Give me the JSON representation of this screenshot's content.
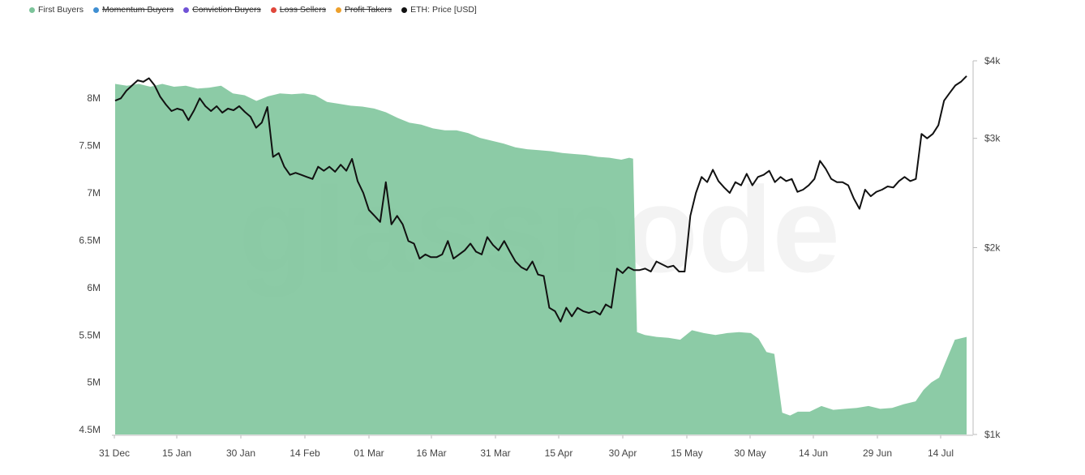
{
  "legend": [
    {
      "label": "First Buyers",
      "color": "#7cc49a",
      "hidden": false
    },
    {
      "label": "Momentum Buyers",
      "color": "#3f8fd2",
      "hidden": true
    },
    {
      "label": "Conviction Buyers",
      "color": "#7052d6",
      "hidden": true
    },
    {
      "label": "Loss Sellers",
      "color": "#e0473b",
      "hidden": true
    },
    {
      "label": "Profit Takers",
      "color": "#eda02c",
      "hidden": true
    },
    {
      "label": "ETH: Price [USD]",
      "color": "#111111",
      "hidden": false
    }
  ],
  "watermark": "glassnode",
  "chart_data": {
    "type": "area",
    "title": "",
    "xlabel": "",
    "ylabel": "",
    "x_ticks": [
      "31 Dec",
      "15 Jan",
      "30 Jan",
      "14 Feb",
      "01 Mar",
      "16 Mar",
      "31 Mar",
      "15 Apr",
      "30 Apr",
      "15 May",
      "30 May",
      "14 Jun",
      "29 Jun",
      "14 Jul"
    ],
    "x_range": [
      "31 Dec",
      "21 Jul"
    ],
    "y_left": {
      "ticks": [
        "4.5M",
        "5M",
        "5.5M",
        "6M",
        "6.5M",
        "7M",
        "7.5M",
        "8M"
      ],
      "range": [
        4.45,
        8.5
      ],
      "unit": "M"
    },
    "y_right": {
      "ticks": [
        "$1k",
        "$2k",
        "$3k",
        "$4k"
      ],
      "scale": "log",
      "range": [
        1000,
        4000
      ]
    },
    "grid": false,
    "legend_position": "top-left",
    "series": [
      {
        "name": "First Buyers",
        "axis": "left",
        "color": "#7cc49a",
        "style": "area",
        "points": [
          [
            0,
            8.15
          ],
          [
            3,
            8.13
          ],
          [
            6,
            8.15
          ],
          [
            9,
            8.12
          ],
          [
            12,
            8.15
          ],
          [
            15,
            8.12
          ],
          [
            18,
            8.13
          ],
          [
            21,
            8.1
          ],
          [
            24,
            8.11
          ],
          [
            27,
            8.13
          ],
          [
            30,
            8.05
          ],
          [
            33,
            8.03
          ],
          [
            36,
            7.97
          ],
          [
            39,
            8.02
          ],
          [
            42,
            8.05
          ],
          [
            45,
            8.04
          ],
          [
            48,
            8.05
          ],
          [
            51,
            8.03
          ],
          [
            54,
            7.96
          ],
          [
            57,
            7.94
          ],
          [
            60,
            7.92
          ],
          [
            63,
            7.91
          ],
          [
            66,
            7.89
          ],
          [
            69,
            7.85
          ],
          [
            72,
            7.79
          ],
          [
            75,
            7.74
          ],
          [
            78,
            7.72
          ],
          [
            81,
            7.68
          ],
          [
            84,
            7.66
          ],
          [
            87,
            7.66
          ],
          [
            90,
            7.63
          ],
          [
            93,
            7.58
          ],
          [
            96,
            7.55
          ],
          [
            99,
            7.52
          ],
          [
            102,
            7.48
          ],
          [
            105,
            7.46
          ],
          [
            108,
            7.45
          ],
          [
            111,
            7.44
          ],
          [
            114,
            7.42
          ],
          [
            117,
            7.41
          ],
          [
            120,
            7.4
          ],
          [
            123,
            7.38
          ],
          [
            126,
            7.37
          ],
          [
            129,
            7.35
          ],
          [
            131,
            7.37
          ],
          [
            132,
            7.36
          ],
          [
            133,
            5.53
          ],
          [
            135,
            5.5
          ],
          [
            138,
            5.48
          ],
          [
            141,
            5.47
          ],
          [
            144,
            5.45
          ],
          [
            147,
            5.55
          ],
          [
            150,
            5.52
          ],
          [
            153,
            5.5
          ],
          [
            156,
            5.52
          ],
          [
            159,
            5.53
          ],
          [
            162,
            5.52
          ],
          [
            164,
            5.46
          ],
          [
            166,
            5.32
          ],
          [
            168,
            5.3
          ],
          [
            170,
            4.68
          ],
          [
            172,
            4.65
          ],
          [
            174,
            4.69
          ],
          [
            177,
            4.69
          ],
          [
            180,
            4.75
          ],
          [
            183,
            4.71
          ],
          [
            186,
            4.72
          ],
          [
            189,
            4.73
          ],
          [
            192,
            4.75
          ],
          [
            195,
            4.72
          ],
          [
            198,
            4.73
          ],
          [
            201,
            4.77
          ],
          [
            204,
            4.8
          ],
          [
            206,
            4.92
          ],
          [
            208,
            5.0
          ],
          [
            210,
            5.05
          ],
          [
            212,
            5.25
          ],
          [
            214,
            5.45
          ],
          [
            217,
            5.48
          ]
        ]
      },
      {
        "name": "ETH: Price [USD]",
        "axis": "right",
        "color": "#111111",
        "style": "line",
        "points": [
          [
            0,
            3450
          ],
          [
            1,
            3480
          ],
          [
            2,
            3580
          ],
          [
            3,
            3650
          ],
          [
            4,
            3720
          ],
          [
            5,
            3700
          ],
          [
            6,
            3750
          ],
          [
            7,
            3650
          ],
          [
            8,
            3500
          ],
          [
            9,
            3400
          ],
          [
            10,
            3320
          ],
          [
            11,
            3350
          ],
          [
            12,
            3330
          ],
          [
            13,
            3210
          ],
          [
            14,
            3330
          ],
          [
            15,
            3480
          ],
          [
            16,
            3380
          ],
          [
            17,
            3320
          ],
          [
            18,
            3380
          ],
          [
            19,
            3300
          ],
          [
            20,
            3350
          ],
          [
            21,
            3330
          ],
          [
            22,
            3380
          ],
          [
            23,
            3310
          ],
          [
            24,
            3250
          ],
          [
            25,
            3120
          ],
          [
            26,
            3180
          ],
          [
            27,
            3370
          ],
          [
            28,
            2800
          ],
          [
            29,
            2840
          ],
          [
            30,
            2700
          ],
          [
            31,
            2620
          ],
          [
            32,
            2640
          ],
          [
            33,
            2620
          ],
          [
            34,
            2600
          ],
          [
            35,
            2580
          ],
          [
            36,
            2700
          ],
          [
            37,
            2660
          ],
          [
            38,
            2700
          ],
          [
            39,
            2650
          ],
          [
            40,
            2720
          ],
          [
            41,
            2660
          ],
          [
            42,
            2780
          ],
          [
            43,
            2560
          ],
          [
            44,
            2450
          ],
          [
            45,
            2300
          ],
          [
            46,
            2250
          ],
          [
            47,
            2200
          ],
          [
            48,
            2550
          ],
          [
            49,
            2180
          ],
          [
            50,
            2250
          ],
          [
            51,
            2180
          ],
          [
            52,
            2050
          ],
          [
            53,
            2030
          ],
          [
            54,
            1920
          ],
          [
            55,
            1950
          ],
          [
            56,
            1930
          ],
          [
            57,
            1930
          ],
          [
            58,
            1950
          ],
          [
            59,
            2050
          ],
          [
            60,
            1920
          ],
          [
            61,
            1950
          ],
          [
            62,
            1980
          ],
          [
            63,
            2030
          ],
          [
            64,
            1970
          ],
          [
            65,
            1950
          ],
          [
            66,
            2080
          ],
          [
            67,
            2020
          ],
          [
            68,
            1980
          ],
          [
            69,
            2050
          ],
          [
            70,
            1970
          ],
          [
            71,
            1900
          ],
          [
            72,
            1860
          ],
          [
            73,
            1840
          ],
          [
            74,
            1900
          ],
          [
            75,
            1810
          ],
          [
            76,
            1800
          ],
          [
            77,
            1600
          ],
          [
            78,
            1580
          ],
          [
            79,
            1520
          ],
          [
            80,
            1600
          ],
          [
            81,
            1550
          ],
          [
            82,
            1600
          ],
          [
            83,
            1580
          ],
          [
            84,
            1570
          ],
          [
            85,
            1580
          ],
          [
            86,
            1560
          ],
          [
            87,
            1620
          ],
          [
            88,
            1600
          ],
          [
            89,
            1850
          ],
          [
            90,
            1820
          ],
          [
            91,
            1860
          ],
          [
            92,
            1840
          ],
          [
            93,
            1840
          ],
          [
            94,
            1850
          ],
          [
            95,
            1830
          ],
          [
            96,
            1900
          ],
          [
            97,
            1880
          ],
          [
            98,
            1860
          ],
          [
            99,
            1870
          ],
          [
            100,
            1830
          ],
          [
            101,
            1830
          ],
          [
            102,
            2250
          ],
          [
            103,
            2450
          ],
          [
            104,
            2600
          ],
          [
            105,
            2550
          ],
          [
            106,
            2670
          ],
          [
            107,
            2560
          ],
          [
            108,
            2500
          ],
          [
            109,
            2450
          ],
          [
            110,
            2550
          ],
          [
            111,
            2520
          ],
          [
            112,
            2630
          ],
          [
            113,
            2520
          ],
          [
            114,
            2600
          ],
          [
            115,
            2620
          ],
          [
            116,
            2660
          ],
          [
            117,
            2550
          ],
          [
            118,
            2600
          ],
          [
            119,
            2560
          ],
          [
            120,
            2580
          ],
          [
            121,
            2460
          ],
          [
            122,
            2480
          ],
          [
            123,
            2520
          ],
          [
            124,
            2580
          ],
          [
            125,
            2760
          ],
          [
            126,
            2680
          ],
          [
            127,
            2580
          ],
          [
            128,
            2550
          ],
          [
            129,
            2550
          ],
          [
            130,
            2520
          ],
          [
            131,
            2400
          ],
          [
            132,
            2310
          ],
          [
            133,
            2480
          ],
          [
            134,
            2420
          ],
          [
            135,
            2460
          ],
          [
            136,
            2480
          ],
          [
            137,
            2510
          ],
          [
            138,
            2500
          ],
          [
            139,
            2560
          ],
          [
            140,
            2600
          ],
          [
            141,
            2560
          ],
          [
            142,
            2580
          ],
          [
            143,
            3050
          ],
          [
            144,
            3000
          ],
          [
            145,
            3050
          ],
          [
            146,
            3150
          ],
          [
            147,
            3450
          ],
          [
            148,
            3550
          ],
          [
            149,
            3650
          ],
          [
            150,
            3700
          ],
          [
            151,
            3780
          ]
        ]
      }
    ]
  }
}
